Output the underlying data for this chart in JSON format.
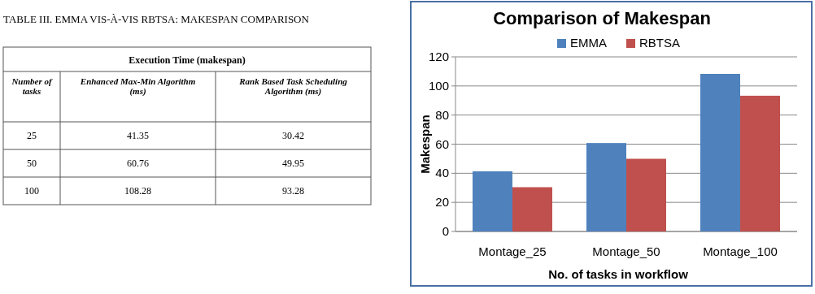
{
  "chart_data": [
    {
      "type": "other",
      "title": "TABLE III. EMMA VIS-À-VIS RBTSA: MAKESPAN COMPARISON",
      "subtitle": "Execution Time (makespan)",
      "categories": [
        "Number of tasks",
        "Enhanced Max-Min Algorithm (ms)",
        "Rank Based Task Scheduling Algorithm (ms)"
      ],
      "annotations": [
        "25",
        "41.35",
        "30.42",
        "50",
        "60.76",
        "49.95",
        "100",
        "108.28",
        "93.28"
      ]
    },
    {
      "type": "bar",
      "title": "Comparison of Makespan",
      "xlabel": "No. of tasks in workflow",
      "ylabel": "Makespan",
      "categories": [
        "Montage_25",
        "Montage_50",
        "Montage_100"
      ],
      "series": [
        {
          "name": "EMMA",
          "color": "#4f81bd",
          "values": [
            41.35,
            60.76,
            108.28
          ]
        },
        {
          "name": "RBTSA",
          "color": "#c0504d",
          "values": [
            30.42,
            49.95,
            93.28
          ]
        }
      ],
      "ylim": [
        0,
        120
      ],
      "yticks": [
        0,
        20,
        40,
        60,
        80,
        100,
        120
      ],
      "grid": "y",
      "legend": "top"
    }
  ]
}
